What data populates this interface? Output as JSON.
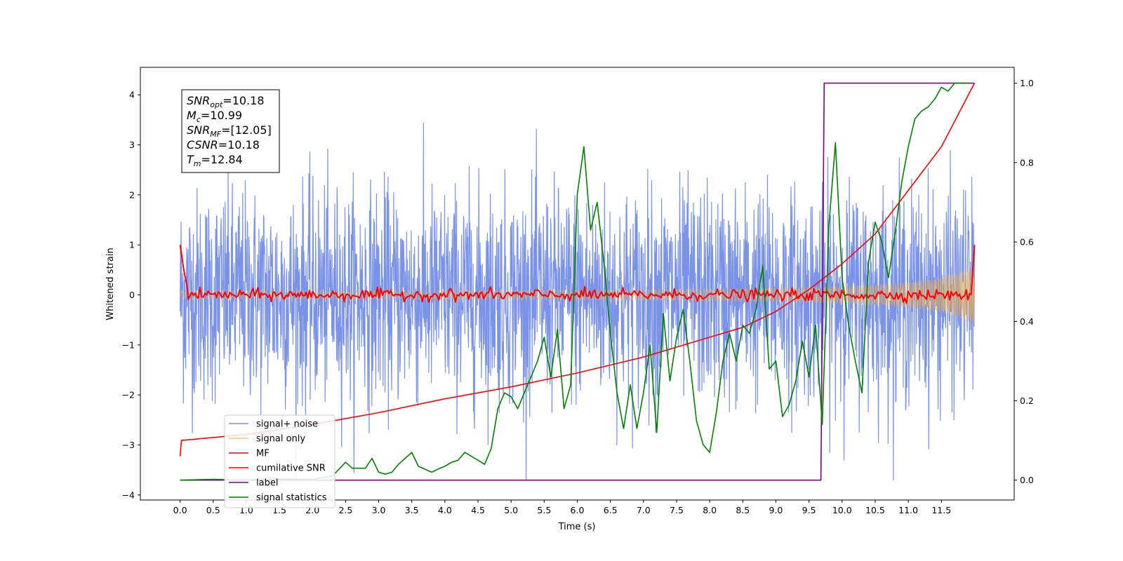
{
  "chart_data": {
    "type": "line",
    "xlabel": "Time (s)",
    "ylabel": "Whitened strain",
    "xlim": [
      -0.6,
      12.6
    ],
    "ylim": [
      -4.1,
      4.55
    ],
    "y2lim": [
      -0.05,
      1.04
    ],
    "x_ticks": [
      "0.0",
      "0.5",
      "1.0",
      "1.5",
      "2.0",
      "2.5",
      "3.0",
      "3.5",
      "4.0",
      "4.5",
      "5.0",
      "5.5",
      "6.0",
      "6.5",
      "7.0",
      "7.5",
      "8.0",
      "8.5",
      "9.0",
      "9.5",
      "10.0",
      "10.5",
      "11.0",
      "11.5"
    ],
    "y_ticks": [
      "−4",
      "−3",
      "−2",
      "−1",
      "0",
      "1",
      "2",
      "3",
      "4"
    ],
    "y2_ticks": [
      "0.0",
      "0.2",
      "0.4",
      "0.6",
      "0.8",
      "1.0"
    ],
    "legend_position": "lower left",
    "annotation": [
      {
        "sym": "SNR",
        "sub": "opt",
        "val": "=10.18"
      },
      {
        "sym": "M",
        "sub": "c",
        "val": "=10.99"
      },
      {
        "sym": "SNR",
        "sub": "MF",
        "val": "=[12.05]"
      },
      {
        "sym": "CSNR",
        "sub": "",
        "val": "=10.18"
      },
      {
        "sym": "T",
        "sub": "m",
        "val": "=12.84"
      }
    ],
    "series": [
      {
        "name": "signal+ noise",
        "color": "#6b86e6",
        "axis": "left",
        "kind": "noise",
        "time_range": [
          0,
          12
        ],
        "approx_range": [
          -3.7,
          4.15
        ]
      },
      {
        "name": "signal only",
        "color": "#f5b041",
        "axis": "left",
        "kind": "chirp",
        "time_range": [
          0,
          12
        ],
        "approx_envelope_end": 0.6
      },
      {
        "name": "MF",
        "color": "#ff0000",
        "axis": "left",
        "kind": "mf",
        "time_range": [
          0,
          12
        ],
        "start_value": 1.0,
        "end_value": 1.0
      },
      {
        "name": "cumilative SNR",
        "color": "#ff0000",
        "axis": "right",
        "x": [
          0,
          0.02,
          1,
          2,
          3,
          4,
          5,
          6,
          7,
          8,
          8.5,
          9,
          9.5,
          10,
          10.5,
          11,
          11.5,
          12
        ],
        "values": [
          0.06,
          0.1,
          0.115,
          0.14,
          0.17,
          0.205,
          0.235,
          0.27,
          0.31,
          0.36,
          0.385,
          0.425,
          0.48,
          0.545,
          0.62,
          0.73,
          0.84,
          1.0
        ]
      },
      {
        "name": "label",
        "color": "#800080",
        "axis": "right",
        "x": [
          0,
          9.68,
          9.73,
          12
        ],
        "values": [
          0.0,
          0.0,
          1.0,
          1.0
        ]
      },
      {
        "name": "signal statistics",
        "color": "#008000",
        "axis": "right",
        "x": [
          0,
          0.5,
          1,
          1.5,
          2,
          2.3,
          2.5,
          2.6,
          2.8,
          2.9,
          3.0,
          3.1,
          3.2,
          3.3,
          3.5,
          3.6,
          3.8,
          3.9,
          4.0,
          4.1,
          4.2,
          4.3,
          4.4,
          4.6,
          4.7,
          4.8,
          4.9,
          5.0,
          5.1,
          5.2,
          5.3,
          5.4,
          5.5,
          5.6,
          5.7,
          5.8,
          5.9,
          6.0,
          6.1,
          6.2,
          6.3,
          6.4,
          6.5,
          6.6,
          6.7,
          6.8,
          6.9,
          7.0,
          7.1,
          7.2,
          7.3,
          7.4,
          7.5,
          7.6,
          7.7,
          7.8,
          7.9,
          8.0,
          8.1,
          8.2,
          8.3,
          8.4,
          8.5,
          8.6,
          8.7,
          8.8,
          8.9,
          9.0,
          9.1,
          9.2,
          9.3,
          9.4,
          9.5,
          9.6,
          9.7,
          9.8,
          9.9,
          10.0,
          10.1,
          10.2,
          10.3,
          10.4,
          10.5,
          10.6,
          10.7,
          10.8,
          10.9,
          11.0,
          11.1,
          11.2,
          11.3,
          11.4,
          11.5,
          11.6,
          11.7,
          11.8,
          11.9
        ],
        "values": [
          0.0,
          0.002,
          0.0,
          0.003,
          0.002,
          0.01,
          0.045,
          0.03,
          0.03,
          0.055,
          0.02,
          0.015,
          0.02,
          0.04,
          0.07,
          0.035,
          0.02,
          0.028,
          0.035,
          0.045,
          0.05,
          0.07,
          0.06,
          0.04,
          0.08,
          0.18,
          0.22,
          0.21,
          0.18,
          0.22,
          0.26,
          0.3,
          0.36,
          0.26,
          0.38,
          0.18,
          0.24,
          0.72,
          0.84,
          0.63,
          0.7,
          0.55,
          0.37,
          0.22,
          0.13,
          0.24,
          0.13,
          0.22,
          0.34,
          0.12,
          0.42,
          0.25,
          0.36,
          0.43,
          0.3,
          0.15,
          0.09,
          0.07,
          0.17,
          0.3,
          0.37,
          0.3,
          0.39,
          0.37,
          0.43,
          0.54,
          0.28,
          0.3,
          0.16,
          0.19,
          0.25,
          0.35,
          0.26,
          0.39,
          0.14,
          0.64,
          0.85,
          0.51,
          0.39,
          0.3,
          0.22,
          0.55,
          0.65,
          0.6,
          0.51,
          0.62,
          0.75,
          0.84,
          0.91,
          0.93,
          0.94,
          0.96,
          0.99,
          0.98,
          1.0,
          1.0,
          1.0
        ]
      }
    ]
  }
}
